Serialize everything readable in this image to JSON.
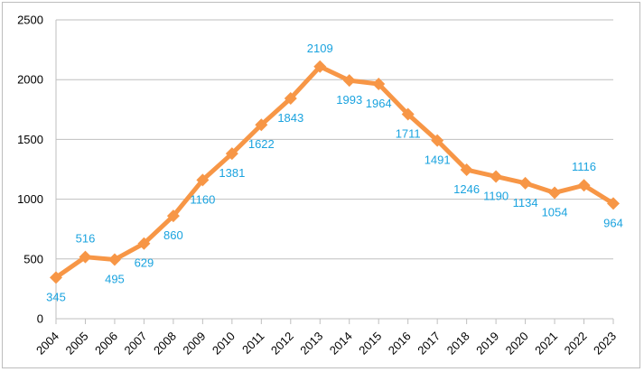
{
  "chart_data": {
    "type": "line",
    "title": "",
    "xlabel": "",
    "ylabel": "",
    "categories": [
      "2004",
      "2005",
      "2006",
      "2007",
      "2008",
      "2009",
      "2010",
      "2011",
      "2012",
      "2013",
      "2014",
      "2015",
      "2016",
      "2017",
      "2018",
      "2019",
      "2020",
      "2021",
      "2022",
      "2023"
    ],
    "series": [
      {
        "values": [
          345,
          516,
          495,
          629,
          860,
          1160,
          1381,
          1622,
          1843,
          2109,
          1993,
          1964,
          1711,
          1491,
          1246,
          1190,
          1134,
          1054,
          1116,
          964
        ],
        "color": "#f79646",
        "marker": "diamond",
        "data_labels": true,
        "label_color": "#1aa3df"
      }
    ],
    "ylim": [
      0,
      2500
    ],
    "yticks": [
      0,
      500,
      1000,
      1500,
      2000,
      2500
    ],
    "grid": "horizontal",
    "legend": "none",
    "xtick_rotation": "-45deg"
  }
}
